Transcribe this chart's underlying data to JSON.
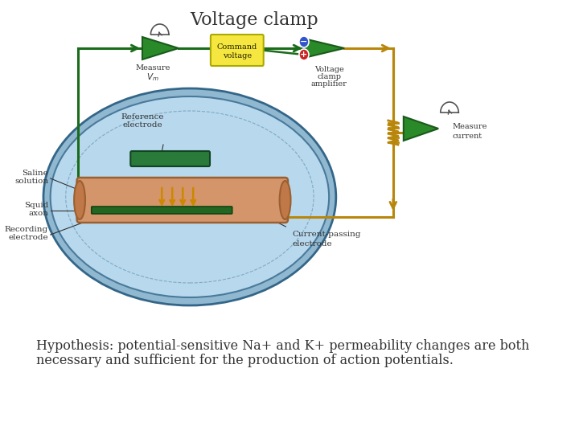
{
  "title": "Voltage clamp",
  "title_fontsize": 16,
  "hypothesis_line1": "Hypothesis: potential-sensitive Na+ and K+ permeability changes are both",
  "hypothesis_line2": "necessary and sufficient for the production of action potentials.",
  "hypothesis_fontsize": 11.5,
  "bg_color": "#ffffff",
  "dish_outer_color": "#a8c8de",
  "dish_fill_color": "#b8d8ee",
  "dish_inner_color": "#c8e8f8",
  "dish_edge_color": "#4a7a9a",
  "axon_body_color": "#d4956a",
  "axon_cap_color": "#c07848",
  "axon_edge_color": "#9a6030",
  "rec_electrode_color": "#226622",
  "ref_electrode_color": "#2a7a3a",
  "circuit_green": "#1a6b1a",
  "circuit_gold": "#b8860b",
  "amp_face_color": "#2a8a2a",
  "amp_edge_color": "#1a5a1a",
  "command_fill": "#f5e640",
  "command_edge": "#aaaa00",
  "label_color": "#333333",
  "gauge_color": "#555555"
}
